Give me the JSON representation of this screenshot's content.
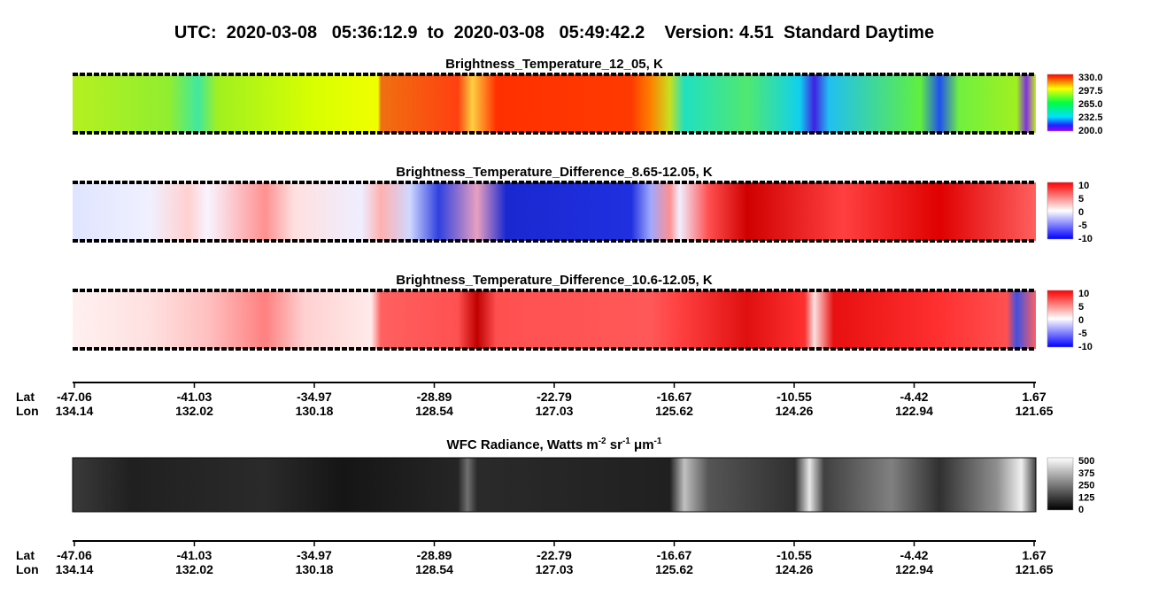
{
  "header": {
    "title": "UTC:  2020-03-08   05:36:12.9  to  2020-03-08   05:49:42.2    Version: 4.51  Standard Daytime"
  },
  "panels": [
    {
      "title": "Brightness_Temperature_12_05, K",
      "colorbar_labels": [
        "330.0",
        "297.5",
        "265.0",
        "232.5",
        "200.0"
      ]
    },
    {
      "title": "Brightness_Temperature_Difference_8.65-12.05, K",
      "colorbar_labels": [
        "10",
        "5",
        "0",
        "-5",
        "-10"
      ]
    },
    {
      "title": "Brightness_Temperature_Difference_10.6-12.05, K",
      "colorbar_labels": [
        "10",
        "5",
        "0",
        "-5",
        "-10"
      ]
    }
  ],
  "wfc": {
    "title_parts": [
      "WFC Radiance, Watts m",
      "-2",
      " sr",
      "-1",
      " μm",
      "-1"
    ],
    "colorbar_labels": [
      "500",
      "375",
      "250",
      "125",
      "0"
    ]
  },
  "axis": {
    "lat_label": "Lat",
    "lon_label": "Lon",
    "lat": [
      "-47.06",
      "-41.03",
      "-34.97",
      "-28.89",
      "-22.79",
      "-16.67",
      "-10.55",
      "-4.42",
      "1.67"
    ],
    "lon": [
      "134.14",
      "132.02",
      "130.18",
      "128.54",
      "127.03",
      "125.62",
      "124.26",
      "122.94",
      "121.65"
    ]
  }
}
